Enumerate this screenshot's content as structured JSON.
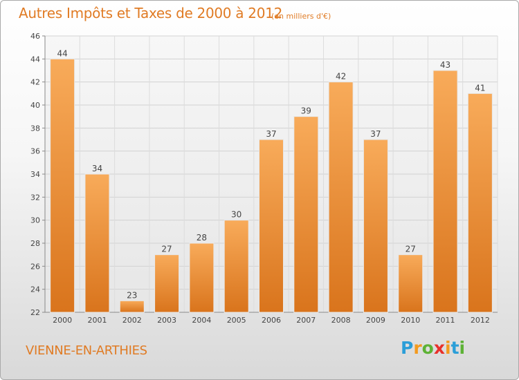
{
  "title": "Autres Impôts et Taxes de 2000 à 2012",
  "subtitle": "(en milliers d'€)",
  "place": "VIENNE-EN-ARTHIES",
  "logo": {
    "letters": [
      "P",
      "r",
      "o",
      "x",
      "i",
      "t",
      "i"
    ],
    "colors": [
      "#2b9ed8",
      "#f39a1e",
      "#5db235",
      "#e8302a",
      "#f39a1e",
      "#2b9ed8",
      "#5db235"
    ]
  },
  "colors": {
    "bar_top": "#f8ab5a",
    "bar_bottom": "#d9741c",
    "text": "#444444",
    "accent": "#e07b24"
  },
  "chart_data": {
    "type": "bar",
    "categories": [
      "2000",
      "2001",
      "2002",
      "2003",
      "2004",
      "2005",
      "2006",
      "2007",
      "2008",
      "2009",
      "2010",
      "2011",
      "2012"
    ],
    "values": [
      44,
      34,
      23,
      27,
      28,
      30,
      37,
      39,
      42,
      37,
      27,
      43,
      41
    ],
    "value_labels": [
      "44",
      "34",
      "23",
      "27",
      "28",
      "30",
      "37",
      "39",
      "42",
      "37",
      "27",
      "43",
      "41"
    ],
    "title": "Autres Impôts et Taxes de 2000 à 2012",
    "xlabel": "",
    "ylabel": "",
    "ylim": [
      22,
      46
    ],
    "yticks": [
      22,
      24,
      26,
      28,
      30,
      32,
      34,
      36,
      38,
      40,
      42,
      44,
      46
    ],
    "ytick_labels": [
      "22",
      "24",
      "26",
      "28",
      "30",
      "32",
      "34",
      "36",
      "38",
      "40",
      "42",
      "44",
      "46"
    ],
    "grid": true,
    "legend": "none"
  }
}
